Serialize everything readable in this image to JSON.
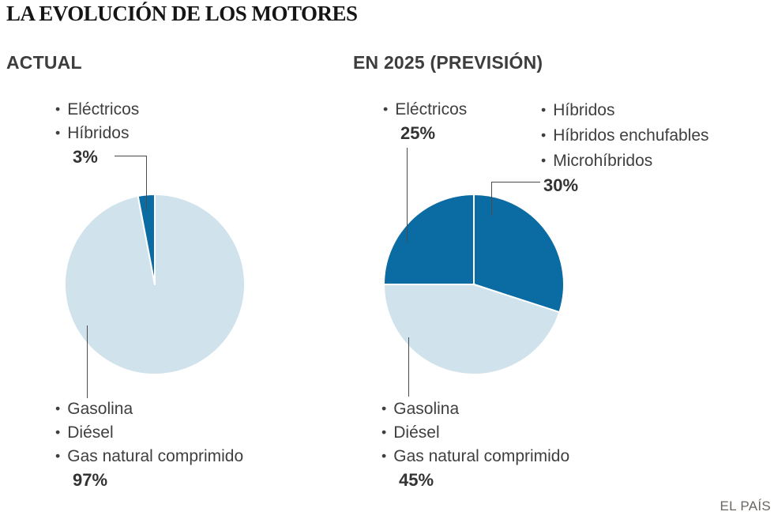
{
  "title": "LA EVOLUCIÓN DE LOS MOTORES",
  "credit": "EL PAÍS",
  "colors": {
    "dark_blue": "#0b6ba3",
    "light_blue": "#d0e2ec",
    "label_gray": "#3f3f3f",
    "leader_line_gray": "#4b4b4b"
  },
  "chart_data": [
    {
      "type": "pie",
      "title": "ACTUAL",
      "start_angle_deg_from_top": 0,
      "direction": "clockwise",
      "legend_position": "callouts-top-and-bottom",
      "series": [
        {
          "name": "Combustión",
          "categories": [
            "Gasolina",
            "Diésel",
            "Gas natural comprimido"
          ],
          "value_pct": 97,
          "pct_label": "97%",
          "color": "#d0e2ec"
        },
        {
          "name": "Electrificados",
          "categories": [
            "Eléctricos",
            "Híbridos"
          ],
          "value_pct": 3,
          "pct_label": "3%",
          "color": "#0b6ba3"
        }
      ]
    },
    {
      "type": "pie",
      "title": "EN 2025 (PREVISIÓN)",
      "start_angle_deg_from_top": 0,
      "direction": "clockwise",
      "legend_position": "callouts-top-and-bottom",
      "series": [
        {
          "name": "Híbridos",
          "categories": [
            "Híbridos",
            "Híbridos enchufables",
            "Microhíbridos"
          ],
          "value_pct": 30,
          "pct_label": "30%",
          "color": "#0b6ba3"
        },
        {
          "name": "Combustión",
          "categories": [
            "Gasolina",
            "Diésel",
            "Gas natural comprimido"
          ],
          "value_pct": 45,
          "pct_label": "45%",
          "color": "#d0e2ec"
        },
        {
          "name": "Eléctricos",
          "categories": [
            "Eléctricos"
          ],
          "value_pct": 25,
          "pct_label": "25%",
          "color": "#0b6ba3"
        }
      ]
    }
  ]
}
